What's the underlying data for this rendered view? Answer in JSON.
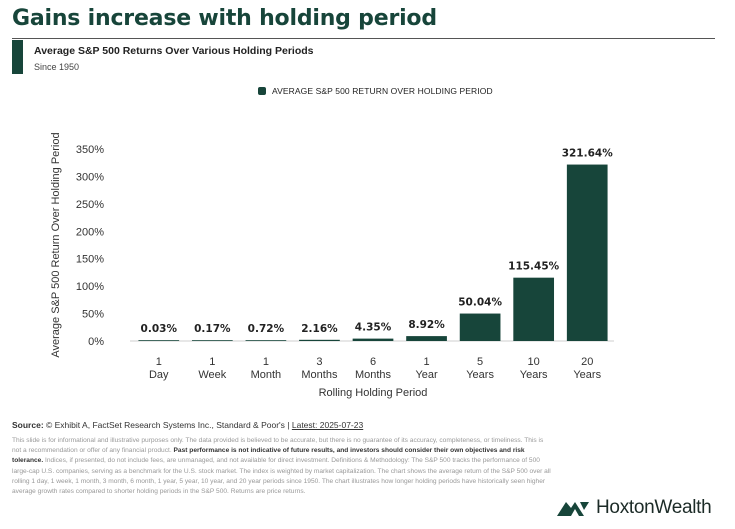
{
  "header": {
    "title": "Gains increase with holding period",
    "subtitle": "Average S&P 500 Returns Over Various Holding Periods",
    "subtitle2": "Since 1950"
  },
  "colors": {
    "bar": "#17453a",
    "accent": "#17453a"
  },
  "chart_data": {
    "type": "bar",
    "legend": "AVERAGE S&P 500 RETURN OVER HOLDING PERIOD",
    "legend_position": "top-center",
    "categories": [
      [
        "1",
        "Day"
      ],
      [
        "1",
        "Week"
      ],
      [
        "1",
        "Month"
      ],
      [
        "3",
        "Months"
      ],
      [
        "6",
        "Months"
      ],
      [
        "1",
        "Year"
      ],
      [
        "5",
        "Years"
      ],
      [
        "10",
        "Years"
      ],
      [
        "20",
        "Years"
      ]
    ],
    "values": [
      0.03,
      0.17,
      0.72,
      2.16,
      4.35,
      8.92,
      50.04,
      115.45,
      321.64
    ],
    "data_labels": [
      "0.03%",
      "0.17%",
      "0.72%",
      "2.16%",
      "4.35%",
      "8.92%",
      "50.04%",
      "115.45%",
      "321.64%"
    ],
    "xlabel": "Rolling Holding Period",
    "ylabel": "Average S&P 500 Return Over Holding Period",
    "ylim": [
      0,
      350
    ],
    "yticks": [
      0,
      50,
      100,
      150,
      200,
      250,
      300,
      350
    ],
    "ytick_labels": [
      "0%",
      "50%",
      "100%",
      "150%",
      "200%",
      "250%",
      "300%",
      "350%"
    ],
    "grid": false
  },
  "footer": {
    "source_prefix": "Source: ",
    "source_text": "© Exhibit A, FactSet Research Systems Inc., Standard & Poor's | ",
    "latest": "Latest: 2025-07-23",
    "disclaimer_1": "This slide is for informational and illustrative purposes only. The data provided is believed to be accurate, but there is no guarantee of its accuracy, completeness, or timeliness. This is not a recommendation or offer of any financial product. ",
    "disclaimer_bold": "Past performance is not indicative of future results, and investors should consider their own objectives and risk tolerance.",
    "disclaimer_2": " Indices, if presented, do not include fees, are unmanaged, and not available for direct investment. Definitions & Methodology: The S&P 500 tracks the performance of 500 large-cap U.S. companies, serving as a benchmark for the U.S. stock market. The index is weighted by market capitalization. The chart shows the average return of the S&P 500 over all rolling 1 day, 1 week, 1 month, 3 month, 6 month, 1 year, 5 year, 10 year, and 20 year periods since 1950. The chart illustrates how longer holding periods have historically seen higher average growth rates compared to shorter holding periods in the S&P 500. Returns are price returns."
  },
  "logo": {
    "text": "HoxtonWealth"
  }
}
